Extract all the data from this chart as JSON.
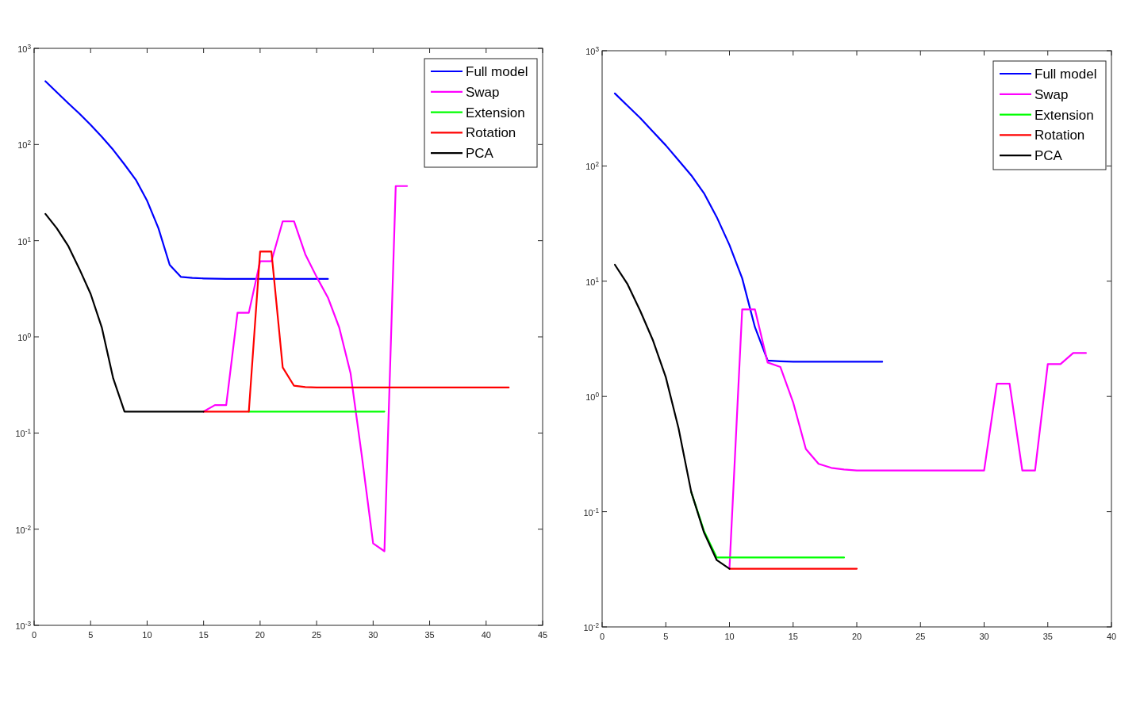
{
  "chart_data": [
    {
      "type": "line",
      "log": "y",
      "legend": "top right",
      "line_style": "solid",
      "xlim": [
        0,
        45
      ],
      "xticks": [
        0,
        5,
        10,
        15,
        20,
        25,
        30,
        35,
        40,
        45
      ],
      "ylim": [
        0.001,
        1000
      ],
      "yticks": [
        {
          "value": 0.001,
          "label": "10$^{-3}$"
        },
        {
          "value": 0.01,
          "label": "10$^{-2}$"
        },
        {
          "value": 0.1,
          "label": "10$^{-1}$"
        },
        {
          "value": 1,
          "label": "10$^{0}$"
        },
        {
          "value": 10,
          "label": "10$^{1}$"
        },
        {
          "value": 100,
          "label": "10$^{2}$"
        },
        {
          "value": 1000,
          "label": "10$^{3}$"
        }
      ],
      "series": [
        {
          "name": "Full model",
          "color": "#0000ff",
          "x": [
            1,
            2,
            3,
            4,
            5,
            6,
            7,
            8,
            9,
            10,
            11,
            12,
            13,
            14,
            15,
            16,
            17,
            18,
            19,
            20,
            21,
            22,
            23,
            24,
            25,
            26
          ],
          "values": [
            455,
            350,
            270,
            210,
            160,
            120,
            88,
            62,
            43,
            26,
            13.5,
            5.6,
            4.2,
            4.1,
            4.05,
            4.02,
            4,
            4,
            4,
            4,
            4,
            4,
            4,
            4,
            4,
            4
          ]
        },
        {
          "name": "Swap",
          "color": "#ff00ff",
          "x": [
            15,
            16,
            17,
            18,
            19,
            20,
            21,
            22,
            23,
            24,
            25,
            26,
            27,
            28,
            29,
            30,
            31,
            32,
            33
          ],
          "values": [
            0.167,
            0.195,
            0.195,
            1.78,
            1.78,
            6.1,
            6.1,
            15.9,
            15.9,
            7.2,
            4.2,
            2.56,
            1.25,
            0.42,
            0.058,
            0.0071,
            0.0059,
            37,
            37
          ]
        },
        {
          "name": "Extension",
          "color": "#00ff00",
          "x": [
            19,
            20,
            21,
            22,
            23,
            24,
            25,
            26,
            27,
            28,
            29,
            30,
            31
          ],
          "values": [
            0.167,
            0.167,
            0.167,
            0.167,
            0.167,
            0.167,
            0.167,
            0.167,
            0.167,
            0.167,
            0.167,
            0.167,
            0.167
          ]
        },
        {
          "name": "Rotation",
          "color": "#ff0000",
          "x": [
            15,
            16,
            17,
            18,
            19,
            20,
            21,
            22,
            23,
            24,
            25,
            26,
            27,
            28,
            29,
            30,
            31,
            32,
            33,
            34,
            35,
            36,
            37,
            38,
            39,
            40,
            41,
            42
          ],
          "values": [
            0.167,
            0.167,
            0.167,
            0.167,
            0.167,
            7.7,
            7.7,
            0.48,
            0.31,
            0.3,
            0.297,
            0.297,
            0.297,
            0.297,
            0.297,
            0.297,
            0.297,
            0.297,
            0.297,
            0.297,
            0.297,
            0.297,
            0.297,
            0.297,
            0.297,
            0.297,
            0.297,
            0.297
          ]
        },
        {
          "name": "PCA",
          "color": "#000000",
          "x": [
            1,
            2,
            3,
            4,
            5,
            6,
            7,
            8,
            9,
            10,
            11,
            12,
            13,
            14,
            15
          ],
          "values": [
            19,
            13.5,
            8.9,
            5.1,
            2.8,
            1.24,
            0.37,
            0.167,
            0.167,
            0.167,
            0.167,
            0.167,
            0.167,
            0.167,
            0.167
          ]
        }
      ]
    },
    {
      "type": "line",
      "log": "y",
      "legend": "top right",
      "line_style": "solid",
      "xlim": [
        0,
        40
      ],
      "xticks": [
        0,
        5,
        10,
        15,
        20,
        25,
        30,
        35,
        40
      ],
      "ylim": [
        0.01,
        1000
      ],
      "yticks": [
        {
          "value": 0.01,
          "label": "10$^{-2}$"
        },
        {
          "value": 0.1,
          "label": "10$^{-1}$"
        },
        {
          "value": 1,
          "label": "10$^{0}$"
        },
        {
          "value": 10,
          "label": "10$^{1}$"
        },
        {
          "value": 100,
          "label": "10$^{2}$"
        },
        {
          "value": 1000,
          "label": "10$^{3}$"
        }
      ],
      "series": [
        {
          "name": "Full model",
          "color": "#0000ff",
          "x": [
            1,
            2,
            3,
            4,
            5,
            6,
            7,
            8,
            9,
            10,
            11,
            12,
            13,
            14,
            15,
            16,
            17,
            18,
            19,
            20,
            21,
            22
          ],
          "values": [
            426,
            333,
            260,
            198,
            151,
            112,
            83,
            58,
            36,
            20.6,
            10.6,
            4,
            2.05,
            2.02,
            2,
            2,
            2,
            2,
            2,
            2,
            2,
            2
          ]
        },
        {
          "name": "Swap",
          "color": "#ff00ff",
          "x": [
            10,
            11,
            12,
            13,
            14,
            15,
            16,
            17,
            18,
            19,
            20,
            21,
            22,
            23,
            24,
            25,
            26,
            27,
            28,
            29,
            30,
            31,
            32,
            33,
            34,
            35,
            36,
            37,
            38
          ],
          "values": [
            0.032,
            5.7,
            5.7,
            1.97,
            1.8,
            0.89,
            0.35,
            0.26,
            0.24,
            0.232,
            0.228,
            0.228,
            0.228,
            0.228,
            0.228,
            0.228,
            0.228,
            0.228,
            0.228,
            0.228,
            0.228,
            1.29,
            1.29,
            0.228,
            0.228,
            1.91,
            1.91,
            2.38,
            2.38
          ]
        },
        {
          "name": "Extension",
          "color": "#00ff00",
          "x": [
            7,
            8,
            9,
            10,
            11,
            12,
            13,
            14,
            15,
            16,
            17,
            18,
            19
          ],
          "values": [
            0.148,
            0.068,
            0.04,
            0.04,
            0.04,
            0.04,
            0.04,
            0.04,
            0.04,
            0.04,
            0.04,
            0.04,
            0.04
          ]
        },
        {
          "name": "Rotation",
          "color": "#ff0000",
          "x": [
            10,
            11,
            12,
            13,
            14,
            15,
            16,
            17,
            18,
            19,
            20
          ],
          "values": [
            0.032,
            0.032,
            0.032,
            0.032,
            0.032,
            0.032,
            0.032,
            0.032,
            0.032,
            0.032,
            0.032
          ]
        },
        {
          "name": "PCA",
          "color": "#000000",
          "x": [
            1,
            2,
            3,
            4,
            5,
            6,
            7,
            8,
            9,
            10
          ],
          "values": [
            13.9,
            9.4,
            5.5,
            3.05,
            1.47,
            0.53,
            0.148,
            0.066,
            0.038,
            0.032
          ]
        }
      ]
    }
  ]
}
